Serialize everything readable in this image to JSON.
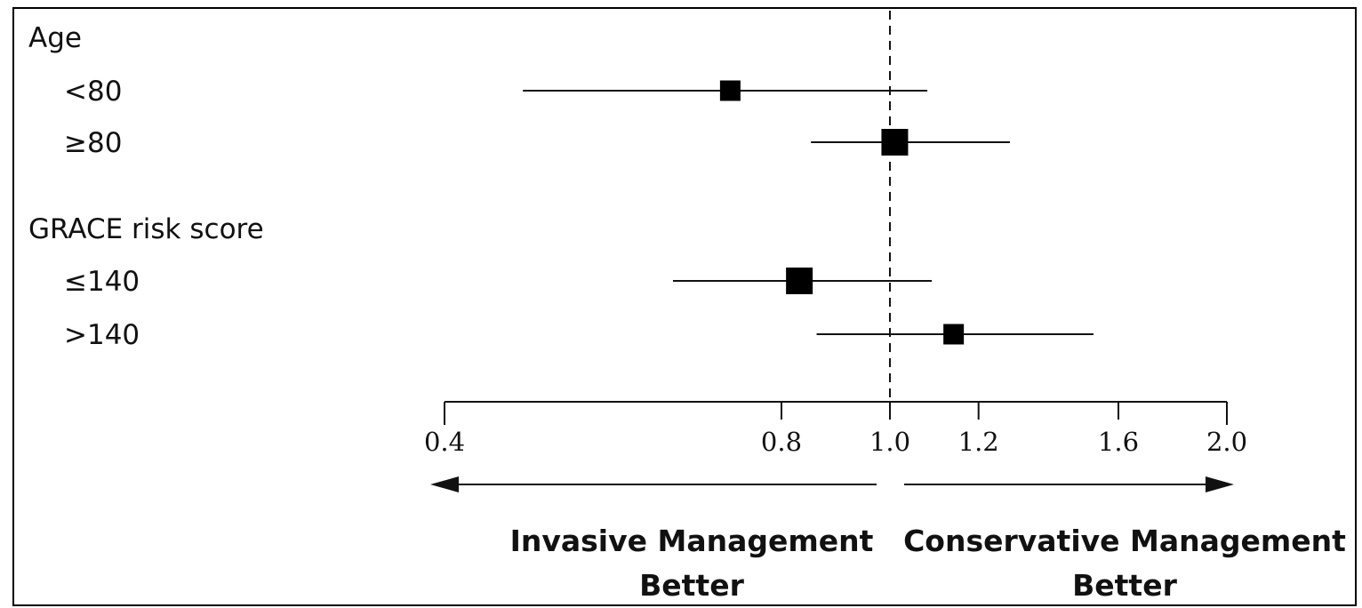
{
  "chart_data": {
    "type": "forest",
    "scale": "log",
    "xlim": [
      0.4,
      2.0
    ],
    "reference_line": 1.0,
    "ticks": [
      {
        "value": 0.4,
        "label": "0.4"
      },
      {
        "value": 0.8,
        "label": "0.8"
      },
      {
        "value": 1.0,
        "label": "1.0"
      },
      {
        "value": 1.2,
        "label": "1.2"
      },
      {
        "value": 1.6,
        "label": "1.6"
      },
      {
        "value": 2.0,
        "label": "2.0"
      }
    ],
    "groups": [
      {
        "label": "Age",
        "rows": [
          {
            "label": "<80",
            "estimate": 0.72,
            "ci_low": 0.47,
            "ci_high": 1.08,
            "marker": "small"
          },
          {
            "label": "≥80",
            "estimate": 1.01,
            "ci_low": 0.85,
            "ci_high": 1.28,
            "marker": "large"
          }
        ]
      },
      {
        "label": "GRACE risk score",
        "rows": [
          {
            "label": "≤140",
            "estimate": 0.83,
            "ci_low": 0.64,
            "ci_high": 1.09,
            "marker": "large"
          },
          {
            "label": ">140",
            "estimate": 1.14,
            "ci_low": 0.86,
            "ci_high": 1.52,
            "marker": "small"
          }
        ]
      }
    ],
    "left_direction": [
      "Invasive Management",
      "Better"
    ],
    "right_direction": [
      "Conservative Management",
      "Better"
    ]
  }
}
